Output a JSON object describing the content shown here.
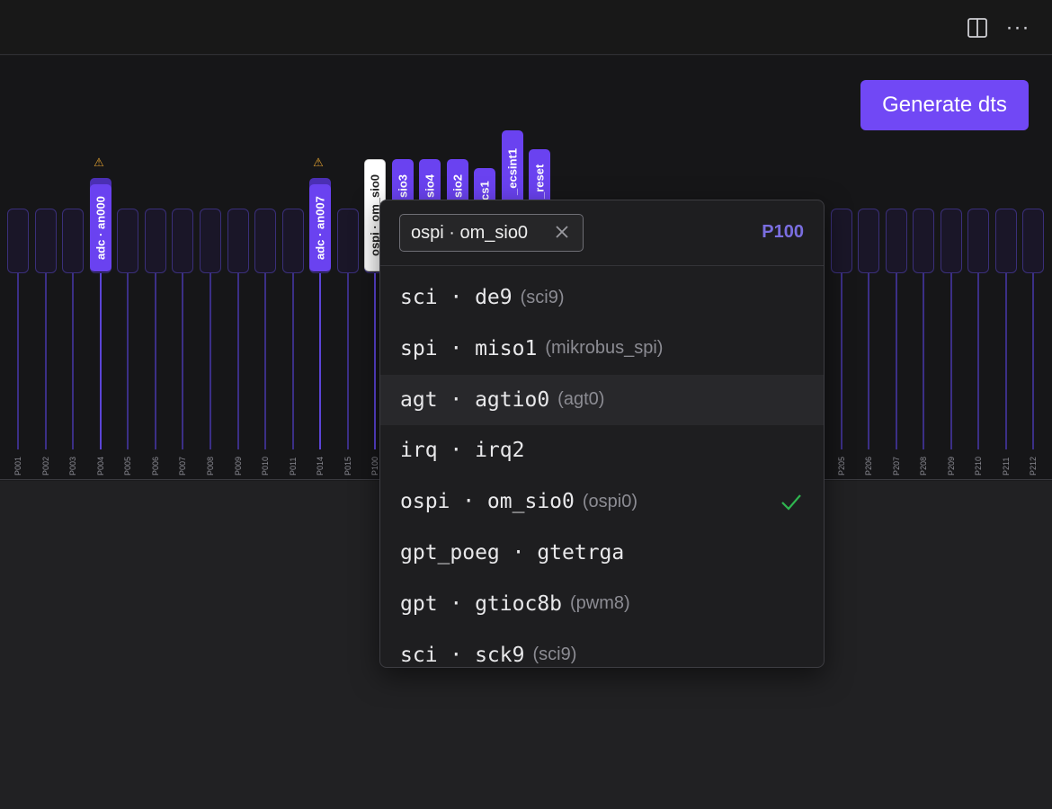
{
  "toolbar": {
    "split_icon": "split-view-icon",
    "more_label": "···",
    "more_icon": "more-horizontal-icon"
  },
  "generate_button": {
    "label": "Generate dts",
    "color": "#7148f5"
  },
  "pins": [
    {
      "name": "P001"
    },
    {
      "name": "P002"
    },
    {
      "name": "P003"
    },
    {
      "name": "P004"
    },
    {
      "name": "P005"
    },
    {
      "name": "P006"
    },
    {
      "name": "P007"
    },
    {
      "name": "P008"
    },
    {
      "name": "P009"
    },
    {
      "name": "P010"
    },
    {
      "name": "P011"
    },
    {
      "name": "P014"
    },
    {
      "name": "P015"
    },
    {
      "name": "P100"
    },
    {
      "name": "P205"
    },
    {
      "name": "P206"
    },
    {
      "name": "P207"
    },
    {
      "name": "P208"
    },
    {
      "name": "P209"
    },
    {
      "name": "P210"
    },
    {
      "name": "P211"
    },
    {
      "name": "P212"
    }
  ],
  "pin_labels": {
    "p004": "adc · an000",
    "p014": "adc · an007",
    "p100": "ospi · om_sio0",
    "sio3": "sio3",
    "sio4": "sio4",
    "sio2": "sio2",
    "cs1": "cs1",
    "ecsint1": "_ecsint1",
    "reset": "_reset"
  },
  "warning_icon": "warning-icon",
  "popover": {
    "chip_label": "ospi · om_sio0",
    "chip_clear_icon": "close-icon",
    "pin_id": "P100",
    "options": [
      {
        "main": "sci · de9",
        "sub": "(sci9)"
      },
      {
        "main": "spi · miso1",
        "sub": "(mikrobus_spi)"
      },
      {
        "main": "agt · agtio0",
        "sub": "(agt0)"
      },
      {
        "main": "irq · irq2",
        "sub": ""
      },
      {
        "main": "ospi · om_sio0",
        "sub": "(ospi0)"
      },
      {
        "main": "gpt_poeg · gtetrga",
        "sub": ""
      },
      {
        "main": "gpt · gtioc8b",
        "sub": "(pwm8)"
      },
      {
        "main": "sci · sck9",
        "sub": "(sci9)"
      }
    ],
    "selected_index": 4,
    "hover_index": 2,
    "check_icon": "check-icon",
    "check_color": "#2fb54f"
  }
}
